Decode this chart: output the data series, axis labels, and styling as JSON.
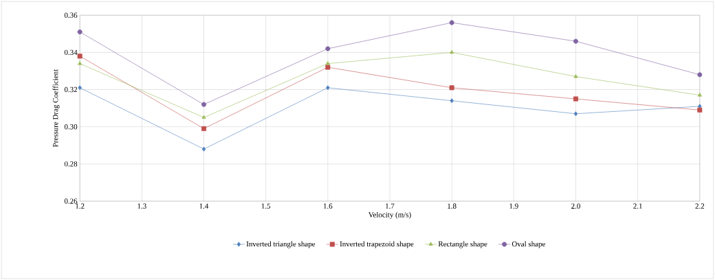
{
  "chart_data": {
    "type": "line",
    "xlabel": "Velocity (m/s)",
    "ylabel": "Pressure Drag Coefficient",
    "x": [
      1.2,
      1.4,
      1.6,
      1.8,
      2.0,
      2.2
    ],
    "series": [
      {
        "name": "Inverted triangle shape",
        "color": "#4f81bd",
        "marker": "diamond",
        "values": [
          0.321,
          0.288,
          0.321,
          0.314,
          0.307,
          0.311
        ]
      },
      {
        "name": "Inverted trapezoid shape",
        "color": "#c0504d",
        "marker": "square",
        "values": [
          0.338,
          0.299,
          0.332,
          0.321,
          0.315,
          0.309
        ]
      },
      {
        "name": "Rectangle shape",
        "color": "#9bbb59",
        "marker": "triangle",
        "values": [
          0.334,
          0.305,
          0.334,
          0.34,
          0.327,
          0.317
        ]
      },
      {
        "name": "Oval shape",
        "color": "#8064a2",
        "marker": "circle",
        "values": [
          0.351,
          0.312,
          0.342,
          0.356,
          0.346,
          0.328
        ]
      }
    ],
    "xlim": [
      1.2,
      2.2
    ],
    "ylim": [
      0.26,
      0.36
    ],
    "xticks": [
      {
        "value": 1.2,
        "label": "1.2"
      },
      {
        "value": 1.3,
        "label": "1.3"
      },
      {
        "value": 1.4,
        "label": "1.4"
      },
      {
        "value": 1.5,
        "label": "1.5"
      },
      {
        "value": 1.6,
        "label": "1.6"
      },
      {
        "value": 1.7,
        "label": "1.7"
      },
      {
        "value": 1.8,
        "label": "1.8"
      },
      {
        "value": 1.9,
        "label": "1.9"
      },
      {
        "value": 2.0,
        "label": "2.0"
      },
      {
        "value": 2.1,
        "label": "2.1"
      },
      {
        "value": 2.2,
        "label": "2.2"
      }
    ],
    "yticks": [
      {
        "value": 0.26,
        "label": "0.26"
      },
      {
        "value": 0.28,
        "label": "0.28"
      },
      {
        "value": 0.3,
        "label": "0.30"
      },
      {
        "value": 0.32,
        "label": "0.32"
      },
      {
        "value": 0.34,
        "label": "0.34"
      },
      {
        "value": 0.36,
        "label": "0.36"
      }
    ],
    "grid": true,
    "legend": "bottom",
    "line_style": "solid"
  }
}
